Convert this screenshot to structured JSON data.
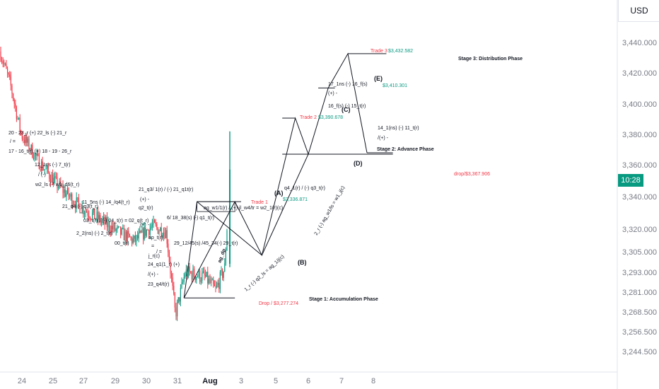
{
  "currency": "USD",
  "last_time_badge": "10:28",
  "chart_data": {
    "type": "line",
    "title": "",
    "price_axis": {
      "ticks": [
        "3,440.000",
        "3,420.000",
        "3,400.000",
        "3,380.000",
        "3,360.000",
        "3,340.000",
        "3,320.000",
        "3,305.000",
        "3,293.000",
        "3,281.000",
        "3,268.500",
        "3,256.500",
        "3,244.500"
      ],
      "tick_values": [
        3440,
        3420,
        3400,
        3380,
        3360,
        3340,
        3320,
        3305,
        3293,
        3281,
        3268.5,
        3256.5,
        3244.5
      ]
    },
    "time_axis": {
      "ticks": [
        "24",
        "25",
        "27",
        "29",
        "30",
        "31",
        "Aug",
        "3",
        "5",
        "6",
        "7",
        "8"
      ],
      "tick_positions": [
        0,
        1,
        2,
        3,
        4,
        5,
        6,
        7,
        8,
        9,
        10,
        11
      ]
    },
    "candles_summary": {
      "start_price": 3434,
      "low_price": 3267,
      "last_price": 3354
    },
    "trades": [
      {
        "label": "Trade 1",
        "price": "$3,336.871",
        "value": 3336.871
      },
      {
        "label": "Trade 2",
        "price": "$3,390.678",
        "value": 3390.678
      },
      {
        "label": "Trade 3",
        "price": "$3,432.582",
        "value": 3432.582
      }
    ],
    "drops": [
      {
        "label": "Drop / $3,277.274",
        "value": 3277.274
      },
      {
        "label": "drop/$3,367.906",
        "value": 3367.906
      }
    ],
    "wave_labels": [
      "(A)",
      "(B)",
      "(C)",
      "(D)",
      "(E)"
    ],
    "zigzag_path": [
      {
        "t": 5.2,
        "price": 3277.3
      },
      {
        "t": 6.8,
        "price": 3336.9
      },
      {
        "t": 7.6,
        "price": 3303
      },
      {
        "t": 8.6,
        "price": 3390.7
      },
      {
        "t": 9.0,
        "price": 3367
      },
      {
        "t": 9.6,
        "price": 3410.3
      },
      {
        "t": 10.2,
        "price": 3432.6
      },
      {
        "t": 10.8,
        "price": 3367.9
      }
    ],
    "stages": [
      "Stage 1: Accumulation Phase",
      "Stage 2: Advance Phase",
      "Stage 3: Distribution Phase"
    ],
    "wave_e_price": "$3,410.301",
    "diagonal_labels": [
      "1_r (-) q2_ls = ag_1/j(c)",
      "2_r (-) ag_w1/ls = w1_j(c)",
      "ag_dp"
    ],
    "annotations": [
      "20 - 23_r (+) 22_ls (-) 21_r",
      "/ =",
      "17 - 16_t(r) (+) 18 - 19 - 26_r",
      "12_1ns (-) 7_t(r)",
      "/ (-)",
      "w2_ls (-) w1_d6(t_r)",
      "21_q4 (-) q3(t_r)",
      "11_5ns (-) 14_/q4(t_r)",
      "03_t(r) / (-) 04_t(r) = 02_q(t_r)",
      "2_2(ns) (-) 2_t(r)",
      "00_t(r)",
      "21_q3/ 1(r) / (-) 21_q1t(r)",
      "(+) -",
      "q2_t(r)",
      "(+) -",
      "6/ 18_38(s) (-) q1_t(r)",
      "ap_t(r)",
      "=",
      "j_r(c)",
      "/ =",
      "29_12/45(s) /45_34(-) 29_t(r)",
      "24_q1(1_r) (+)",
      "/(+) -",
      "23_q4/t(r)",
      "ag_w1/1(r) / (+) jl_w4/tr = w2_1(r)(c)",
      "q4_1(r) / (-) q3_t(r)",
      "17_1ns (-) 16_f(s)",
      "(+) -",
      "16_f(s) (-) 15_t(r)",
      "14_1(ns) (-) 11_t(r)",
      "/(+) -"
    ],
    "grid": false,
    "legend": "none"
  }
}
